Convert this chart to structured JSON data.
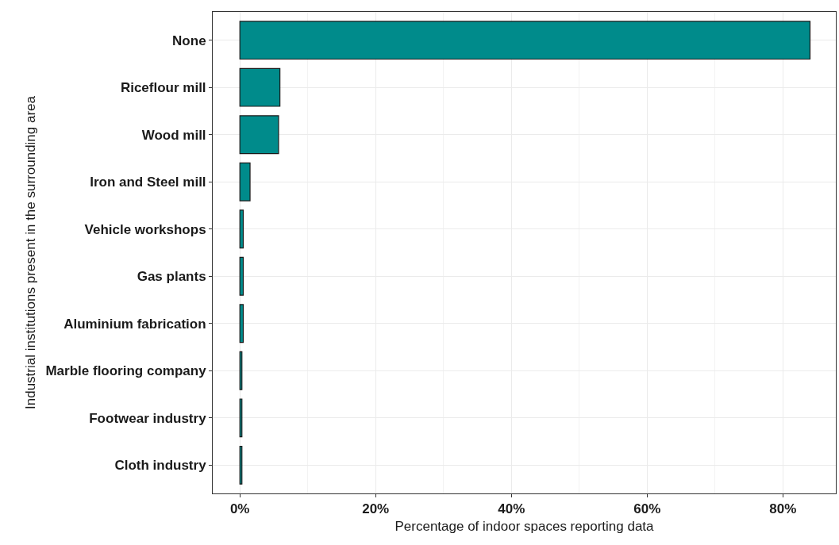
{
  "chart_data": {
    "type": "bar",
    "orientation": "horizontal",
    "xlabel": "Percentage of indoor spaces reporting data",
    "ylabel": "Industrial institutions present in the surrounding area",
    "categories": [
      "None",
      "Riceflour mill",
      "Wood mill",
      "Iron and Steel mill",
      "Vehicle workshops",
      "Gas plants",
      "Aluminium fabrication",
      "Marble flooring company",
      "Footwear industry",
      "Cloth industry"
    ],
    "values": [
      84.0,
      5.9,
      5.7,
      1.5,
      0.5,
      0.5,
      0.5,
      0.3,
      0.3,
      0.3
    ],
    "color": "#008b8b",
    "xlim": [
      -4,
      87.8
    ],
    "xticks": [
      {
        "value": 0,
        "label": "0%"
      },
      {
        "value": 20,
        "label": "20%"
      },
      {
        "value": 40,
        "label": "40%"
      },
      {
        "value": 60,
        "label": "60%"
      },
      {
        "value": 80,
        "label": "80%"
      }
    ],
    "grid": true
  }
}
